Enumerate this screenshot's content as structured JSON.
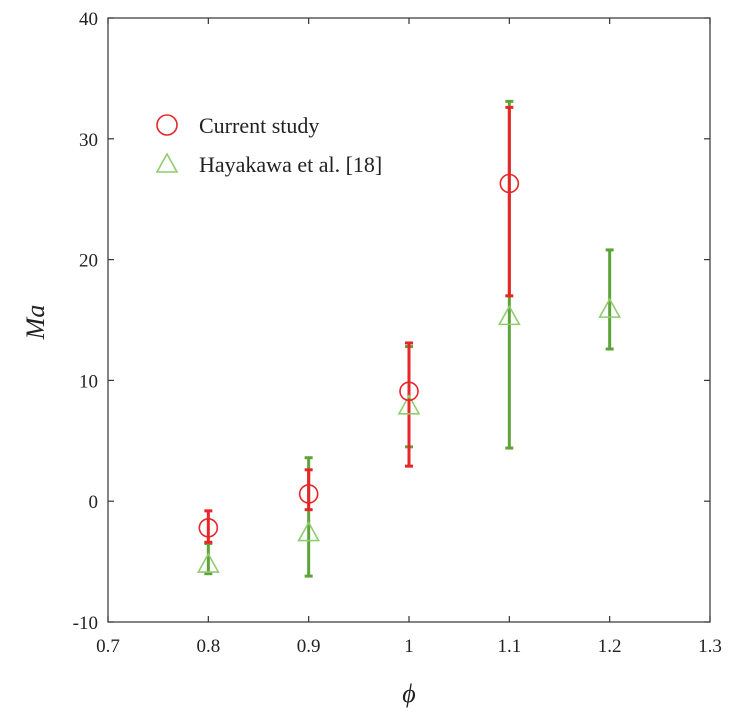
{
  "chart_data": {
    "type": "scatter",
    "title": "",
    "xlabel": "ϕ",
    "ylabel": "Ma",
    "xlim": [
      0.7,
      1.3
    ],
    "ylim": [
      -10,
      40
    ],
    "x_ticks": [
      0.7,
      0.8,
      0.9,
      1.0,
      1.1,
      1.2,
      1.3
    ],
    "x_tick_labels": [
      "0.7",
      "0.8",
      "0.9",
      "1",
      "1.1",
      "1.2",
      "1.3"
    ],
    "y_ticks": [
      -10,
      0,
      10,
      20,
      30,
      40
    ],
    "y_tick_labels": [
      "-10",
      "0",
      "10",
      "20",
      "30",
      "40"
    ],
    "grid": false,
    "legend_position": "top-left",
    "series": [
      {
        "name": "Current study",
        "marker": "circle",
        "color": "#e8262a",
        "points": [
          {
            "x": 0.8,
            "y": -2.2,
            "err_low": -3.4,
            "err_high": -0.8
          },
          {
            "x": 0.9,
            "y": 0.6,
            "err_low": -0.7,
            "err_high": 2.6
          },
          {
            "x": 1.0,
            "y": 9.1,
            "err_low": 2.9,
            "err_high": 13.1
          },
          {
            "x": 1.1,
            "y": 26.3,
            "err_low": 17.0,
            "err_high": 32.6
          }
        ]
      },
      {
        "name": "Hayakawa et al. [18]",
        "marker": "triangle",
        "color": "#5ea23a",
        "points": [
          {
            "x": 0.8,
            "y": -5.2,
            "err_low": -6.0,
            "err_high": -3.5
          },
          {
            "x": 0.9,
            "y": -2.6,
            "err_low": -6.2,
            "err_high": 3.6
          },
          {
            "x": 1.0,
            "y": 7.9,
            "err_low": 4.5,
            "err_high": 12.8
          },
          {
            "x": 1.1,
            "y": 15.3,
            "err_low": 4.4,
            "err_high": 33.1
          },
          {
            "x": 1.2,
            "y": 15.9,
            "err_low": 12.6,
            "err_high": 20.8
          }
        ]
      }
    ]
  }
}
